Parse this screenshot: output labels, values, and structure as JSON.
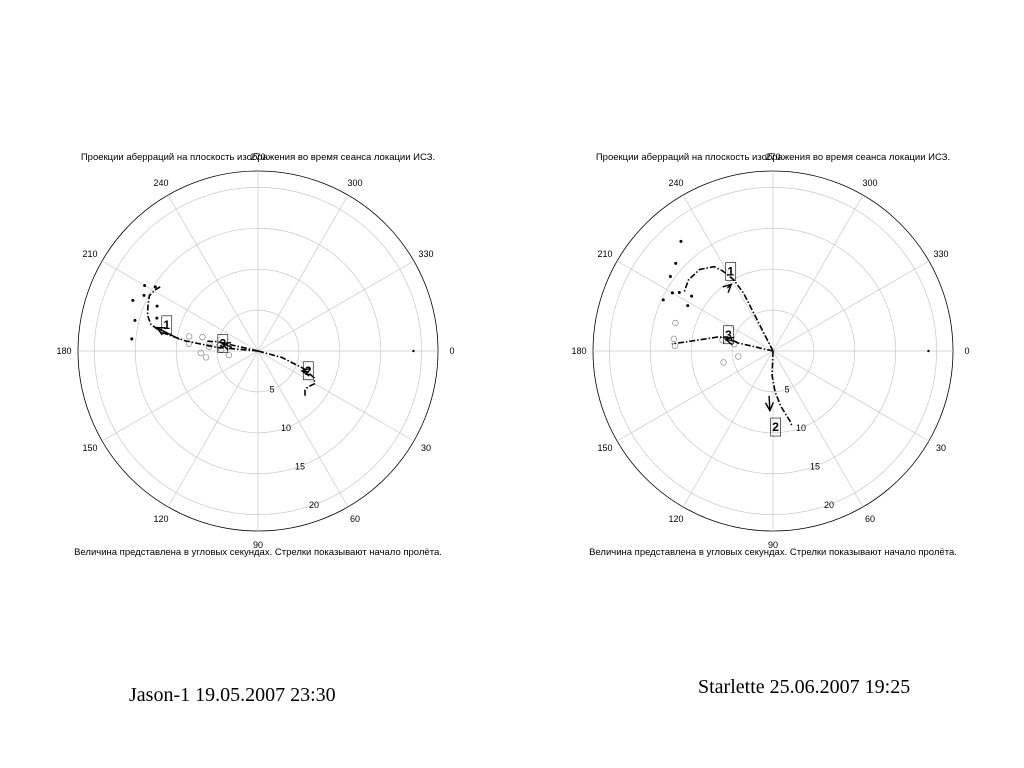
{
  "chart_data": [
    {
      "type": "polar",
      "title": "Проекции аберраций на плоскость изображения во время сеанса локации ИСЗ.",
      "note": "Величина представлена в угловых секундах. Стрелки показывают начало пролёта.",
      "caption": "Jason-1 19.05.2007 23:30",
      "angle_ticks": [
        0,
        30,
        60,
        90,
        120,
        150,
        180,
        210,
        240,
        270,
        300,
        330
      ],
      "radial_ticks": [
        5,
        10,
        15,
        20
      ],
      "rlim": [
        0,
        22
      ],
      "grid": true,
      "passes": [
        {
          "label": "1",
          "label_point": [
            196,
            11.6
          ],
          "arrow_tip": [
            193,
            12.7
          ],
          "arrow_tail": [
            188.5,
            9.7
          ],
          "track": [
            [
              0,
              0
            ],
            [
              185,
              5
            ],
            [
              188,
              9
            ],
            [
              191,
              12
            ],
            [
              194,
              13.5
            ],
            [
              198,
              14.2
            ],
            [
              203,
              14.6
            ],
            [
              207,
              14.9
            ],
            [
              211,
              14.6
            ],
            [
              214,
              14.2
            ]
          ]
        },
        {
          "label": "2",
          "label_point": [
            21.5,
            6.6
          ],
          "arrow_tip": [
            24.5,
            5.9
          ],
          "arrow_tail": [
            22.5,
            6.7
          ],
          "track": [
            [
              0,
              0
            ],
            [
              15,
              3
            ],
            [
              21,
              6
            ],
            [
              25.5,
              7.6
            ],
            [
              30,
              8
            ],
            [
              36,
              7.5
            ],
            [
              40,
              7.5
            ],
            [
              44,
              8
            ]
          ]
        },
        {
          "label": "3",
          "label_point": [
            192,
            4.4
          ],
          "arrow_tip": [
            192,
            4.5
          ],
          "arrow_tail": [
            188,
            3.2
          ],
          "track": [
            [
              0,
              0
            ],
            [
              193,
              3.5
            ],
            [
              193,
              5
            ],
            [
              191,
              6.3
            ]
          ]
        }
      ],
      "points_filled": [
        [
          206,
          15.5
        ],
        [
          210,
          16
        ],
        [
          212,
          14.8
        ],
        [
          202,
          16.5
        ],
        [
          194,
          15.5
        ],
        [
          185.5,
          15.5
        ],
        [
          204,
          13.5
        ],
        [
          198,
          13
        ]
      ],
      "points_open": [
        [
          194,
          7
        ],
        [
          192,
          8.6
        ],
        [
          188,
          6
        ],
        [
          186,
          8.5
        ],
        [
          182,
          4.5
        ],
        [
          185,
          6
        ],
        [
          178,
          7
        ],
        [
          173,
          6.4
        ],
        [
          172,
          3.6
        ],
        [
          187,
          4.8
        ]
      ],
      "outer_dot": [
        0,
        19
      ]
    },
    {
      "type": "polar",
      "title": "Проекции аберраций на плоскость изображения во время сеанса локации ИСЗ.",
      "note": "Величина представлена в угловых секундах. Стрелки показывают начало пролёта.",
      "caption": "Starlette 25.06.2007 19:25",
      "angle_ticks": [
        0,
        30,
        60,
        90,
        120,
        150,
        180,
        210,
        240,
        270,
        300,
        330
      ],
      "radial_ticks": [
        5,
        10,
        15,
        20
      ],
      "rlim": [
        0,
        22
      ],
      "grid": true,
      "passes": [
        {
          "label": "1",
          "label_point": [
            242,
            11
          ],
          "arrow_tip": [
            238,
            9.6
          ],
          "arrow_tail": [
            234,
            9.5
          ],
          "track": [
            [
              0,
              0
            ],
            [
              243,
              8
            ],
            [
              241,
              10
            ],
            [
              238,
              11.5
            ],
            [
              235,
              12.6
            ],
            [
              228,
              13.4
            ],
            [
              220,
              13.5
            ],
            [
              213,
              13
            ]
          ]
        },
        {
          "label": "2",
          "label_point": [
            88,
            9.3
          ],
          "arrow_tip": [
            93,
            7.3
          ],
          "arrow_tail": [
            95,
            5.5
          ],
          "track": [
            [
              0,
              0
            ],
            [
              92,
              3
            ],
            [
              87,
              5
            ],
            [
              82,
              6.8
            ],
            [
              76,
              9
            ],
            [
              76,
              9.5
            ]
          ]
        },
        {
          "label": "3",
          "label_point": [
            200,
            5.8
          ],
          "arrow_tip": [
            194,
            6
          ],
          "arrow_tail": [
            194,
            4.5
          ],
          "track": [
            [
              0,
              0
            ],
            [
              193,
              4.5
            ],
            [
              197,
              5.8
            ],
            [
              194,
              7
            ],
            [
              187,
              10
            ],
            [
              184,
              12.4
            ]
          ]
        }
      ],
      "points_filled": [
        [
          216,
          15.5
        ],
        [
          222,
          16
        ],
        [
          230,
          17.5
        ],
        [
          212,
          13.5
        ],
        [
          214,
          12
        ],
        [
          210,
          14.2
        ],
        [
          205,
          14.8
        ],
        [
          208,
          11.8
        ]
      ],
      "points_open": [
        [
          192,
          6.3
        ],
        [
          190,
          4.8
        ],
        [
          187,
          12.2
        ],
        [
          183,
          12
        ],
        [
          167,
          6.2
        ],
        [
          171,
          4.3
        ],
        [
          196,
          12.4
        ]
      ],
      "outer_dot": [
        0,
        19
      ]
    }
  ]
}
